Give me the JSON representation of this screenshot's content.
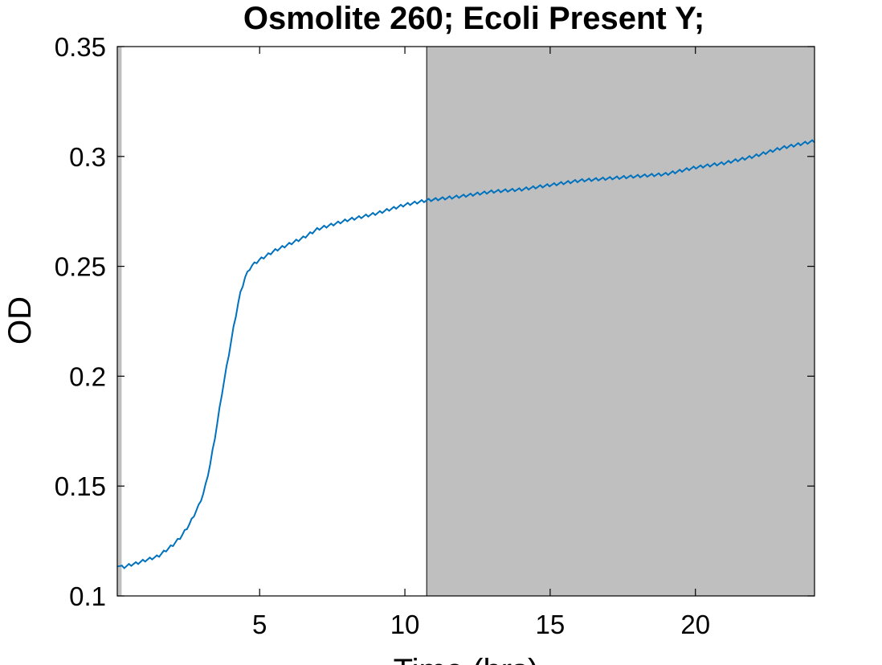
{
  "chart_data": {
    "type": "line",
    "title": "Osmolite 260; Ecoli Present Y;",
    "xlabel": "Time (hrs)",
    "ylabel": "OD",
    "xlim": [
      0.1,
      24.1
    ],
    "ylim": [
      0.1,
      0.35
    ],
    "xticks": [
      5,
      10,
      15,
      20
    ],
    "yticks": [
      0.1,
      0.15,
      0.2,
      0.25,
      0.3,
      0.35
    ],
    "xtick_labels": [
      "5",
      "10",
      "15",
      "20"
    ],
    "ytick_labels": [
      "0.1",
      "0.15",
      "0.2",
      "0.25",
      "0.3",
      "0.35"
    ],
    "grid": false,
    "line_color": "#0072BD",
    "shade_color": "#BFBFBF",
    "shaded_ranges": [
      [
        0.1,
        0.25
      ],
      [
        10.75,
        24.1
      ]
    ],
    "series": [
      {
        "x": [
          0.1,
          0.3,
          0.5,
          0.8,
          1.0,
          1.5,
          2.0,
          2.3,
          2.6,
          2.9,
          3.1,
          3.3,
          3.5,
          3.7,
          3.9,
          4.1,
          4.3,
          4.5,
          4.7,
          4.9,
          5.0,
          5.5,
          6.0,
          6.5,
          7.0,
          7.5,
          8.0,
          9.0,
          10.0,
          10.75,
          12.0,
          13.0,
          14.0,
          15.0,
          16.0,
          17.0,
          18.0,
          19.0,
          20.0,
          21.0,
          22.0,
          23.0,
          24.1
        ],
        "y": [
          0.114,
          0.113,
          0.114,
          0.115,
          0.116,
          0.118,
          0.123,
          0.127,
          0.133,
          0.141,
          0.148,
          0.16,
          0.175,
          0.192,
          0.207,
          0.222,
          0.236,
          0.245,
          0.25,
          0.252,
          0.253,
          0.257,
          0.26,
          0.263,
          0.267,
          0.269,
          0.271,
          0.274,
          0.278,
          0.28,
          0.282,
          0.284,
          0.285,
          0.287,
          0.289,
          0.29,
          0.291,
          0.292,
          0.295,
          0.297,
          0.3,
          0.304,
          0.307
        ]
      }
    ]
  }
}
